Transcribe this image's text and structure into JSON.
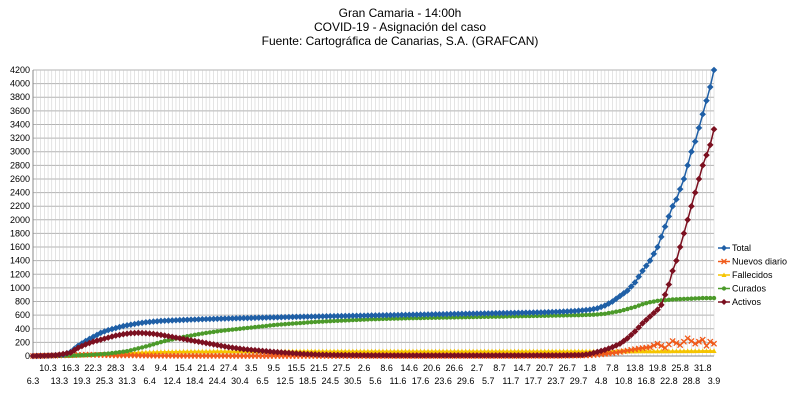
{
  "chart_data": {
    "type": "line",
    "title": [
      "Gran Camaria - 14:00h",
      "COVID-19 - Asignación del caso",
      "Fuente: Cartográfica de Canarias, S.A. (GRAFCAN)"
    ],
    "xlabel": "",
    "ylabel": "",
    "ylim": [
      0,
      4200
    ],
    "yticks": [
      0,
      200,
      400,
      600,
      800,
      1000,
      1200,
      1400,
      1600,
      1800,
      2000,
      2200,
      2400,
      2600,
      2800,
      3000,
      3200,
      3400,
      3600,
      3800,
      4000,
      4200
    ],
    "grid": true,
    "legend_position": "right",
    "x_labels_top": [
      "10.3",
      "16.3",
      "22.3",
      "28.3",
      "3.4",
      "9.4",
      "15.4",
      "21.4",
      "27.4",
      "3.5",
      "9.5",
      "15.5",
      "21.5",
      "27.5",
      "2.6",
      "8.6",
      "14.6",
      "20.6",
      "26.6",
      "2.7",
      "8.7",
      "14.7",
      "20.7",
      "26.7",
      "1.8",
      "7.8",
      "13.8",
      "19.8",
      "25.8",
      "31.8"
    ],
    "x_labels_bottom": [
      "6.3",
      "13.3",
      "19.3",
      "25.3",
      "31.3",
      "6.4",
      "12.4",
      "18.4",
      "24.4",
      "30.4",
      "6.5",
      "12.5",
      "18.5",
      "24.5",
      "30.5",
      "5.6",
      "11.6",
      "17.6",
      "23.6",
      "29.6",
      "5.7",
      "11.7",
      "17.7",
      "23.7",
      "29.7",
      "4.8",
      "10.8",
      "16.8",
      "22.8",
      "28.8",
      "3.9"
    ],
    "x_day_index_top": [
      4,
      10,
      16,
      22,
      28,
      34,
      40,
      46,
      52,
      58,
      64,
      70,
      76,
      82,
      88,
      94,
      100,
      106,
      112,
      118,
      124,
      130,
      136,
      142,
      148,
      154,
      160,
      166,
      172,
      178
    ],
    "x_day_index_bottom": [
      0,
      7,
      13,
      19,
      25,
      31,
      37,
      43,
      49,
      55,
      61,
      67,
      73,
      79,
      85,
      91,
      97,
      103,
      109,
      115,
      121,
      127,
      133,
      139,
      145,
      151,
      157,
      163,
      169,
      175,
      181
    ],
    "x_range": [
      0,
      181
    ],
    "series": [
      {
        "name": "Total",
        "color": "#1f5fa6",
        "marker": "diamond",
        "points": [
          [
            0,
            0
          ],
          [
            4,
            5
          ],
          [
            8,
            20
          ],
          [
            10,
            60
          ],
          [
            12,
            150
          ],
          [
            14,
            220
          ],
          [
            16,
            280
          ],
          [
            18,
            340
          ],
          [
            20,
            380
          ],
          [
            22,
            410
          ],
          [
            24,
            440
          ],
          [
            26,
            460
          ],
          [
            28,
            480
          ],
          [
            30,
            495
          ],
          [
            32,
            505
          ],
          [
            34,
            515
          ],
          [
            36,
            520
          ],
          [
            40,
            530
          ],
          [
            45,
            540
          ],
          [
            50,
            548
          ],
          [
            55,
            555
          ],
          [
            60,
            562
          ],
          [
            65,
            568
          ],
          [
            70,
            575
          ],
          [
            75,
            580
          ],
          [
            80,
            585
          ],
          [
            85,
            590
          ],
          [
            90,
            595
          ],
          [
            95,
            600
          ],
          [
            100,
            605
          ],
          [
            105,
            610
          ],
          [
            110,
            615
          ],
          [
            115,
            620
          ],
          [
            120,
            625
          ],
          [
            125,
            630
          ],
          [
            130,
            635
          ],
          [
            135,
            640
          ],
          [
            140,
            650
          ],
          [
            144,
            660
          ],
          [
            148,
            680
          ],
          [
            150,
            700
          ],
          [
            152,
            740
          ],
          [
            154,
            800
          ],
          [
            156,
            880
          ],
          [
            158,
            960
          ],
          [
            160,
            1080
          ],
          [
            162,
            1250
          ],
          [
            164,
            1400
          ],
          [
            165,
            1500
          ],
          [
            166,
            1600
          ],
          [
            167,
            1750
          ],
          [
            168,
            1900
          ],
          [
            169,
            2050
          ],
          [
            170,
            2200
          ],
          [
            171,
            2300
          ],
          [
            172,
            2450
          ],
          [
            173,
            2600
          ],
          [
            174,
            2800
          ],
          [
            175,
            3000
          ],
          [
            176,
            3150
          ],
          [
            177,
            3350
          ],
          [
            178,
            3550
          ],
          [
            179,
            3750
          ],
          [
            180,
            3950
          ],
          [
            181,
            4200
          ]
        ]
      },
      {
        "name": "Nuevos diario",
        "color": "#f05a1a",
        "marker": "x",
        "points": [
          [
            0,
            0
          ],
          [
            10,
            12
          ],
          [
            14,
            20
          ],
          [
            18,
            15
          ],
          [
            22,
            8
          ],
          [
            26,
            10
          ],
          [
            30,
            6
          ],
          [
            40,
            3
          ],
          [
            60,
            1
          ],
          [
            100,
            1
          ],
          [
            140,
            2
          ],
          [
            148,
            10
          ],
          [
            152,
            30
          ],
          [
            155,
            50
          ],
          [
            158,
            80
          ],
          [
            161,
            110
          ],
          [
            164,
            130
          ],
          [
            166,
            180
          ],
          [
            168,
            120
          ],
          [
            170,
            220
          ],
          [
            172,
            160
          ],
          [
            174,
            260
          ],
          [
            176,
            180
          ],
          [
            178,
            240
          ],
          [
            179,
            150
          ],
          [
            180,
            210
          ],
          [
            181,
            180
          ]
        ]
      },
      {
        "name": "Fallecidos",
        "color": "#f5c400",
        "marker": "triangle",
        "points": [
          [
            0,
            0
          ],
          [
            10,
            5
          ],
          [
            15,
            15
          ],
          [
            20,
            30
          ],
          [
            25,
            45
          ],
          [
            30,
            55
          ],
          [
            35,
            62
          ],
          [
            40,
            66
          ],
          [
            50,
            69
          ],
          [
            70,
            70
          ],
          [
            100,
            70
          ],
          [
            140,
            70
          ],
          [
            160,
            70
          ],
          [
            170,
            72
          ],
          [
            181,
            75
          ]
        ]
      },
      {
        "name": "Curados",
        "color": "#4c9a2a",
        "marker": "circle",
        "points": [
          [
            0,
            0
          ],
          [
            10,
            5
          ],
          [
            15,
            15
          ],
          [
            20,
            35
          ],
          [
            25,
            70
          ],
          [
            30,
            140
          ],
          [
            35,
            220
          ],
          [
            40,
            280
          ],
          [
            45,
            330
          ],
          [
            50,
            370
          ],
          [
            55,
            400
          ],
          [
            60,
            430
          ],
          [
            65,
            460
          ],
          [
            70,
            480
          ],
          [
            75,
            500
          ],
          [
            80,
            515
          ],
          [
            90,
            540
          ],
          [
            100,
            555
          ],
          [
            110,
            565
          ],
          [
            120,
            575
          ],
          [
            130,
            585
          ],
          [
            140,
            595
          ],
          [
            145,
            600
          ],
          [
            148,
            605
          ],
          [
            150,
            610
          ],
          [
            152,
            620
          ],
          [
            154,
            640
          ],
          [
            156,
            660
          ],
          [
            158,
            690
          ],
          [
            160,
            720
          ],
          [
            162,
            760
          ],
          [
            164,
            790
          ],
          [
            166,
            810
          ],
          [
            168,
            820
          ],
          [
            170,
            830
          ],
          [
            172,
            835
          ],
          [
            174,
            840
          ],
          [
            176,
            845
          ],
          [
            178,
            850
          ],
          [
            180,
            850
          ],
          [
            181,
            850
          ]
        ]
      },
      {
        "name": "Activos",
        "color": "#7b1020",
        "marker": "diamond",
        "points": [
          [
            0,
            0
          ],
          [
            6,
            10
          ],
          [
            10,
            50
          ],
          [
            12,
            120
          ],
          [
            14,
            170
          ],
          [
            16,
            210
          ],
          [
            18,
            240
          ],
          [
            20,
            270
          ],
          [
            22,
            300
          ],
          [
            24,
            320
          ],
          [
            26,
            335
          ],
          [
            28,
            340
          ],
          [
            30,
            335
          ],
          [
            32,
            325
          ],
          [
            34,
            310
          ],
          [
            36,
            290
          ],
          [
            38,
            270
          ],
          [
            40,
            250
          ],
          [
            44,
            210
          ],
          [
            48,
            170
          ],
          [
            52,
            130
          ],
          [
            56,
            100
          ],
          [
            60,
            80
          ],
          [
            64,
            60
          ],
          [
            68,
            45
          ],
          [
            72,
            30
          ],
          [
            76,
            20
          ],
          [
            80,
            15
          ],
          [
            90,
            10
          ],
          [
            100,
            8
          ],
          [
            120,
            8
          ],
          [
            140,
            10
          ],
          [
            146,
            15
          ],
          [
            148,
            30
          ],
          [
            150,
            60
          ],
          [
            152,
            90
          ],
          [
            154,
            130
          ],
          [
            156,
            180
          ],
          [
            158,
            260
          ],
          [
            160,
            360
          ],
          [
            162,
            480
          ],
          [
            164,
            580
          ],
          [
            165,
            630
          ],
          [
            166,
            680
          ],
          [
            167,
            750
          ],
          [
            168,
            900
          ],
          [
            169,
            1050
          ],
          [
            170,
            1250
          ],
          [
            171,
            1400
          ],
          [
            172,
            1600
          ],
          [
            173,
            1800
          ],
          [
            174,
            2000
          ],
          [
            175,
            2200
          ],
          [
            176,
            2400
          ],
          [
            177,
            2600
          ],
          [
            178,
            2800
          ],
          [
            179,
            2950
          ],
          [
            180,
            3100
          ],
          [
            181,
            3330
          ]
        ]
      }
    ],
    "legend": [
      "Total",
      "Nuevos diario",
      "Fallecidos",
      "Curados",
      "Activos"
    ]
  }
}
